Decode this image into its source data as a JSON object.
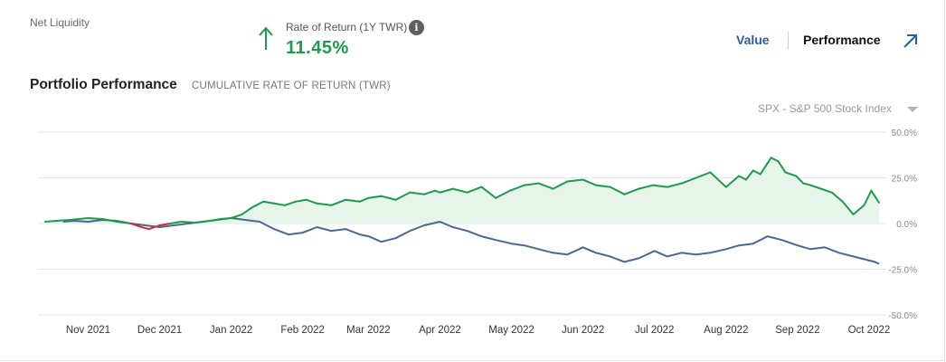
{
  "header": {
    "net_liquidity_label": "Net Liquidity",
    "rate_of_return_label": "Rate of Return (1Y TWR)",
    "rate_of_return_value": "11.45%",
    "info_glyph": "i",
    "trend_icon": "arrow-up-icon",
    "expand_icon": "arrow-up-right-icon"
  },
  "view_toggle": {
    "value_label": "Value",
    "performance_label": "Performance",
    "active": "Performance"
  },
  "section": {
    "title": "Portfolio Performance",
    "subtitle": "CUMULATIVE RATE OF RETURN (TWR)"
  },
  "benchmark": {
    "selected": "SPX - S&P 500 Stock Index",
    "caret_icon": "caret-down-icon"
  },
  "colors": {
    "portfolio_positive": "#1e9a4c",
    "portfolio_negative": "#d0294a",
    "portfolio_fill": "#e6f4ea",
    "benchmark_line": "#4a6891",
    "gridline": "#e6e6e6",
    "accent_blue": "#2a5d9a"
  },
  "chart_data": {
    "type": "line",
    "title": "Portfolio Performance",
    "subtitle": "CUMULATIVE RATE OF RETURN (TWR)",
    "xlabel": "",
    "ylabel": "",
    "ylim": [
      -50,
      50
    ],
    "yticks": [
      50,
      25,
      0,
      -25,
      -50
    ],
    "ytick_labels": [
      "50.0%",
      "25.0%",
      "0.0%",
      "-25.0%",
      "-50.0%"
    ],
    "x_tick_labels": [
      "Nov 2021",
      "Dec 2021",
      "Jan 2022",
      "Feb 2022",
      "Mar 2022",
      "Apr 2022",
      "May 2022",
      "Jun 2022",
      "Jul 2022",
      "Aug 2022",
      "Sep 2022",
      "Oct 2022"
    ],
    "x_tick_positions": [
      1.0,
      2.0,
      3.0,
      4.0,
      4.92,
      5.92,
      6.92,
      7.92,
      8.92,
      9.92,
      10.92,
      11.92
    ],
    "xlim": [
      0.4,
      12.06
    ],
    "grid": true,
    "series": [
      {
        "name": "Portfolio",
        "x": [
          0.4,
          0.55,
          0.75,
          1.0,
          1.2,
          1.4,
          1.6,
          1.75,
          1.85,
          2.0,
          2.15,
          2.3,
          2.5,
          2.7,
          2.85,
          3.0,
          3.15,
          3.3,
          3.45,
          3.6,
          3.75,
          3.9,
          4.05,
          4.2,
          4.4,
          4.6,
          4.8,
          4.92,
          5.1,
          5.3,
          5.5,
          5.7,
          5.85,
          5.92,
          6.1,
          6.3,
          6.5,
          6.7,
          6.9,
          7.1,
          7.3,
          7.5,
          7.7,
          7.92,
          8.1,
          8.3,
          8.5,
          8.7,
          8.9,
          9.1,
          9.3,
          9.5,
          9.7,
          9.92,
          10.1,
          10.2,
          10.3,
          10.4,
          10.5,
          10.55,
          10.65,
          10.75,
          10.9,
          11.0,
          11.1,
          11.25,
          11.4,
          11.55,
          11.7,
          11.85,
          11.95,
          12.0,
          12.06
        ],
        "values": [
          1,
          1.5,
          2,
          3,
          2.5,
          1,
          0,
          -2,
          -3,
          -1,
          0,
          1,
          0.5,
          1.5,
          2.5,
          3,
          5,
          9,
          12,
          11,
          10,
          12,
          13,
          11,
          10,
          13,
          12,
          14,
          15,
          13,
          17,
          16,
          18,
          17,
          19,
          17,
          20,
          14,
          18,
          21,
          22,
          19,
          23,
          24,
          21,
          20,
          16,
          19,
          21,
          20,
          22,
          25,
          28,
          20,
          26,
          24,
          29,
          27,
          33,
          36,
          34,
          28,
          26,
          22,
          21,
          19,
          17,
          12,
          5,
          10,
          18,
          15,
          11.45
        ]
      },
      {
        "name": "SPX - S&P 500 Stock Index",
        "x": [
          0.65,
          0.8,
          1.0,
          1.2,
          1.4,
          1.6,
          1.8,
          2.0,
          2.2,
          2.4,
          2.6,
          2.8,
          3.0,
          3.2,
          3.4,
          3.6,
          3.8,
          4.0,
          4.2,
          4.4,
          4.6,
          4.8,
          4.92,
          5.1,
          5.3,
          5.5,
          5.7,
          5.92,
          6.1,
          6.3,
          6.5,
          6.7,
          6.92,
          7.1,
          7.3,
          7.5,
          7.7,
          7.92,
          8.1,
          8.3,
          8.5,
          8.7,
          8.92,
          9.1,
          9.3,
          9.5,
          9.7,
          9.92,
          10.1,
          10.3,
          10.5,
          10.7,
          10.92,
          11.1,
          11.3,
          11.5,
          11.7,
          11.9,
          12.0,
          12.06
        ],
        "values": [
          1,
          1.5,
          1,
          2,
          1.5,
          0,
          -1,
          -2,
          -1,
          0,
          1,
          2,
          3,
          2,
          1,
          -3,
          -6,
          -5,
          -2,
          -4,
          -3,
          -6,
          -7,
          -10,
          -8,
          -4,
          -1,
          1,
          -2,
          -4,
          -7,
          -9,
          -11,
          -12,
          -14,
          -16,
          -17,
          -13,
          -16,
          -18,
          -21,
          -19,
          -15,
          -18,
          -16,
          -17,
          -16,
          -14,
          -12,
          -11,
          -7,
          -9,
          -12,
          -14,
          -13,
          -16,
          -18,
          -20,
          -21,
          -22
        ]
      }
    ]
  }
}
